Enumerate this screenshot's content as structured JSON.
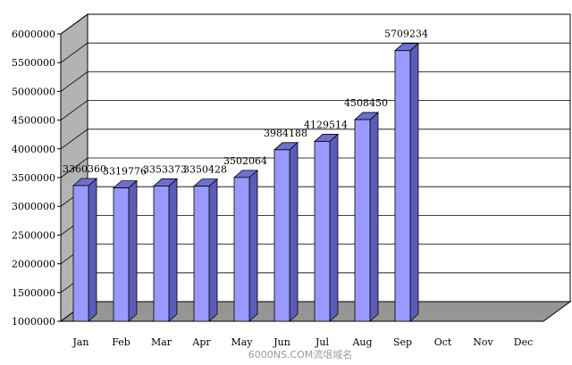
{
  "chart_data": {
    "type": "bar",
    "categories": [
      "Jan",
      "Feb",
      "Mar",
      "Apr",
      "May",
      "Jun",
      "Jul",
      "Aug",
      "Sep",
      "Oct",
      "Nov",
      "Dec"
    ],
    "values": [
      3360360,
      3319776,
      3353373,
      3350428,
      3502064,
      3984188,
      4129514,
      4508450,
      5709234,
      null,
      null,
      null
    ],
    "data_labels": [
      "3360360",
      "3319776",
      "3353373",
      "3350428",
      "3502064",
      "3984188",
      "4129514",
      "4508450",
      "5709234",
      "",
      "",
      ""
    ],
    "y_ticks": [
      "1000000",
      "1500000",
      "2000000",
      "2500000",
      "3000000",
      "3500000",
      "4000000",
      "4500000",
      "5000000",
      "5500000",
      "6000000"
    ],
    "ylim": [
      1000000,
      6000000
    ],
    "title": "",
    "xlabel": "",
    "ylabel": "",
    "grid": true,
    "style": "3d",
    "colors": {
      "bar_front": "#9999ff",
      "bar_side": "#5c5cb8",
      "bar_top": "#6f6fcc",
      "wall_left": "#b3b3b3",
      "floor": "#959595",
      "grid": "#000000"
    }
  },
  "watermark": "6000NS.COM流氓域名"
}
